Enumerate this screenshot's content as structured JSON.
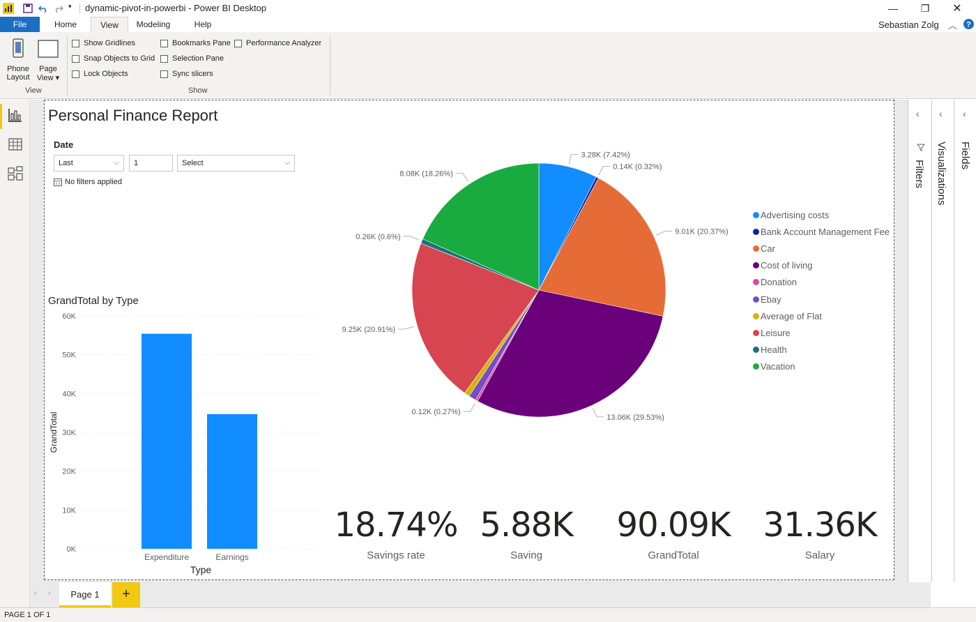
{
  "window": {
    "title": "dynamic-pivot-in-powerbi - Power BI Desktop",
    "user": "Sebastian Zolg"
  },
  "ribbon": {
    "tabs": [
      "File",
      "Home",
      "View",
      "Modeling",
      "Help"
    ],
    "active_tab": "View",
    "view_group": {
      "phone_layout": [
        "Phone",
        "Layout"
      ],
      "page_view": [
        "Page",
        "View"
      ],
      "label": "View"
    },
    "show_group": {
      "label": "Show",
      "options": [
        {
          "label": "Show Gridlines",
          "checked": false
        },
        {
          "label": "Snap Objects to Grid",
          "checked": false
        },
        {
          "label": "Lock Objects",
          "checked": false
        },
        {
          "label": "Bookmarks Pane",
          "checked": false
        },
        {
          "label": "Selection Pane",
          "checked": false
        },
        {
          "label": "Sync slicers",
          "checked": false
        },
        {
          "label": "Performance Analyzer",
          "checked": false
        }
      ]
    }
  },
  "report": {
    "title": "Personal Finance Report",
    "date_slicer": {
      "label": "Date",
      "mode": "Last",
      "count": "1",
      "unit": "Select",
      "filter_status": "No filters applied"
    }
  },
  "panes": {
    "filters": "Filters",
    "visualizations": "Visualizations",
    "fields": "Fields"
  },
  "pages": {
    "tabs": [
      "Page 1"
    ],
    "add": "+",
    "status": "PAGE 1 OF 1"
  },
  "kpis": [
    {
      "value": "18.74%",
      "label": "Savings rate"
    },
    {
      "value": "5.88K",
      "label": "Saving"
    },
    {
      "value": "90.09K",
      "label": "GrandTotal"
    },
    {
      "value": "31.36K",
      "label": "Salary"
    }
  ],
  "chart_data": [
    {
      "type": "bar",
      "title": "GrandTotal by Type",
      "xlabel": "Type",
      "ylabel": "GrandTotal",
      "categories": [
        "Expenditure",
        "Earnings"
      ],
      "values": [
        55400,
        34700
      ],
      "ylim": [
        0,
        60000
      ],
      "yticks": [
        "0K",
        "10K",
        "20K",
        "30K",
        "40K",
        "50K",
        "60K"
      ],
      "color": "#118dff",
      "grid": true
    },
    {
      "type": "pie",
      "legend_position": "right",
      "slices": [
        {
          "name": "Advertising costs",
          "value": 3.28,
          "label": "3.28K (7.42%)",
          "color": "#118dff"
        },
        {
          "name": "Bank Account Management Fee",
          "value": 0.14,
          "label": "0.14K (0.32%)",
          "color": "#12239e"
        },
        {
          "name": "Car",
          "value": 9.01,
          "label": "9.01K (20.37%)",
          "color": "#e66c37"
        },
        {
          "name": "Cost of living",
          "value": 13.06,
          "label": "13.06K (29.53%)",
          "color": "#6b007b"
        },
        {
          "name": "Donation",
          "value": 0.12,
          "label": "0.12K (0.27%)",
          "color": "#e044a7"
        },
        {
          "name": "Ebay",
          "value": 0.42,
          "label": "",
          "color": "#744ec2"
        },
        {
          "name": "Average of Flat",
          "value": 0.3,
          "label": "",
          "color": "#d9b300"
        },
        {
          "name": "Leisure",
          "value": 9.25,
          "label": "9.25K (20.91%)",
          "color": "#d64550"
        },
        {
          "name": "Health",
          "value": 0.26,
          "label": "0.26K (0.6%)",
          "color": "#197278"
        },
        {
          "name": "Vacation",
          "value": 8.08,
          "label": "8.08K (18.26%)",
          "color": "#1aab40"
        }
      ]
    }
  ]
}
